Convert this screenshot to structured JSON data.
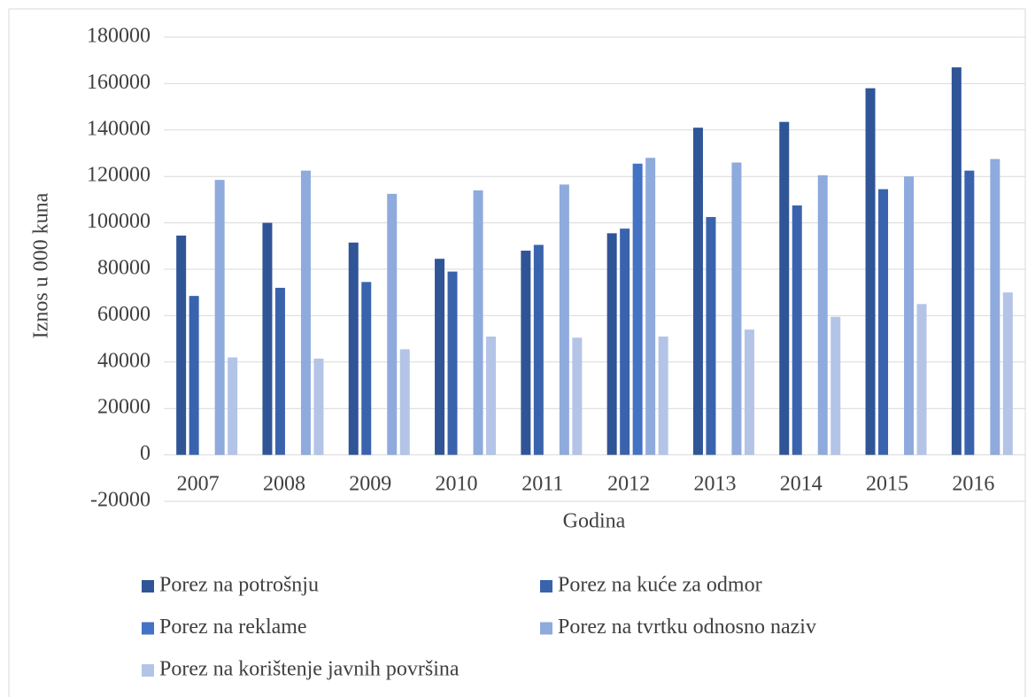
{
  "chart_data": {
    "type": "bar",
    "y_label": "Iznos u 000 kuna",
    "x_label": "Godina",
    "categories": [
      "2007",
      "2008",
      "2009",
      "2010",
      "2011",
      "2012",
      "2013",
      "2014",
      "2015",
      "2016"
    ],
    "series": [
      {
        "name": "Porez na potrošnju",
        "color": "#2f5597",
        "values": [
          94500,
          100000,
          91500,
          84500,
          88000,
          95500,
          141000,
          143500,
          158000,
          167000
        ]
      },
      {
        "name": "Porez na kuće za odmor",
        "color": "#3a63ad",
        "values": [
          68500,
          72000,
          74500,
          79000,
          90500,
          97500,
          102500,
          107500,
          114500,
          122500
        ]
      },
      {
        "name": "Porez na reklame",
        "color": "#4472c4",
        "values": [
          null,
          null,
          null,
          null,
          null,
          125500,
          null,
          null,
          null,
          null
        ]
      },
      {
        "name": "Porez na tvrtku odnosno naziv",
        "color": "#8faadc",
        "values": [
          118500,
          122500,
          112500,
          114000,
          116500,
          128000,
          126000,
          120500,
          120000,
          127500
        ]
      },
      {
        "name": "Porez na korištenje javnih površina",
        "color": "#b4c4e7",
        "values": [
          42000,
          41500,
          45500,
          51000,
          50500,
          51000,
          54000,
          59500,
          65000,
          70000
        ]
      }
    ],
    "ylim": [
      -20000,
      180000
    ],
    "yticks": [
      -20000,
      0,
      20000,
      40000,
      60000,
      80000,
      100000,
      120000,
      140000,
      160000,
      180000
    ],
    "grid": true
  }
}
